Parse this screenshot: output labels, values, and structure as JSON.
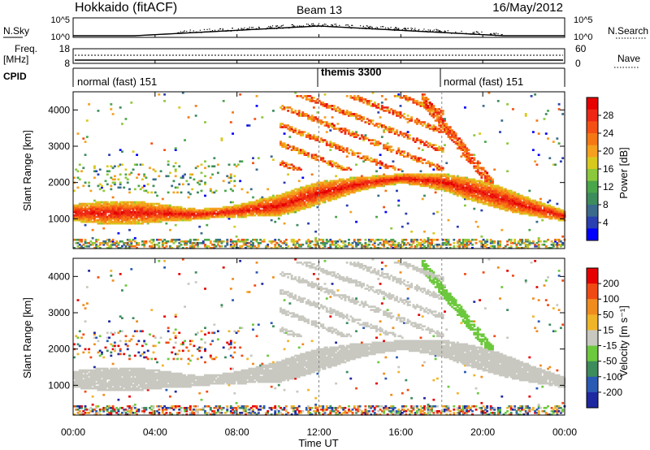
{
  "header": {
    "station": "Hokkaido (fitACF)",
    "beam": "Beam 13",
    "date": "16/May/2012"
  },
  "strip_nsky": {
    "left_label": "N.Sky",
    "right_label": "N.Search",
    "left_ticks": [
      "10^5",
      "10^0"
    ],
    "right_ticks": [
      "10^5",
      "10^0"
    ]
  },
  "strip_freq": {
    "left_label": "Freq.",
    "left_unit": "[MHz]",
    "right_label": "Nave",
    "left_ticks": [
      "18",
      "8"
    ],
    "right_ticks": [
      "60",
      "0"
    ]
  },
  "cpid": {
    "label": "CPID",
    "segments": [
      {
        "name": "normal (fast) 151",
        "start_hour": 0,
        "end_hour": 12
      },
      {
        "name": "themis 3300",
        "start_hour": 12,
        "end_hour": 18
      },
      {
        "name": "normal (fast) 151",
        "start_hour": 18,
        "end_hour": 24
      }
    ]
  },
  "x_axis": {
    "label": "Time UT",
    "ticks": [
      "00:00",
      "04:00",
      "08:00",
      "12:00",
      "16:00",
      "20:00",
      "00:00"
    ],
    "tick_hours": [
      0,
      4,
      8,
      12,
      16,
      20,
      24
    ]
  },
  "chart_data": [
    {
      "type": "heatmap",
      "parameter": "power",
      "ylabel": "Slant Range [km]",
      "yticks": [
        1000,
        2000,
        3000,
        4000
      ],
      "ylim": [
        180,
        4500
      ],
      "xlim_hours": [
        0,
        24
      ],
      "colorbar": {
        "label": "Power [dB]",
        "ticks": [
          "28",
          "24",
          "20",
          "16",
          "12",
          "8",
          "4"
        ],
        "tick_values": [
          28,
          24,
          20,
          16,
          12,
          8,
          4
        ],
        "range": [
          0,
          30
        ],
        "colors": [
          "#0000ff",
          "#2a3fb0",
          "#3a6a8c",
          "#3c8c5c",
          "#4aa64a",
          "#8cc83c",
          "#d8c81e",
          "#f5a01e",
          "#f57814",
          "#f55014",
          "#ee2814",
          "#e60000"
        ]
      },
      "main_echo_band": [
        {
          "hour": 0,
          "range_km": 1150
        },
        {
          "hour": 4,
          "range_km": 1150
        },
        {
          "hour": 6,
          "range_km": 1100
        },
        {
          "hour": 8,
          "range_km": 1200
        },
        {
          "hour": 10,
          "range_km": 1350
        },
        {
          "hour": 12,
          "range_km": 1700
        },
        {
          "hour": 14,
          "range_km": 1950
        },
        {
          "hour": 16,
          "range_km": 2100
        },
        {
          "hour": 18,
          "range_km": 2000
        },
        {
          "hour": 20,
          "range_km": 1700
        },
        {
          "hour": 22,
          "range_km": 1350
        },
        {
          "hour": 24,
          "range_km": 1050
        }
      ]
    },
    {
      "type": "heatmap",
      "parameter": "velocity",
      "ylabel": "Slant Range [km]",
      "yticks": [
        1000,
        2000,
        3000,
        4000
      ],
      "ylim": [
        180,
        4500
      ],
      "xlim_hours": [
        0,
        24
      ],
      "colorbar": {
        "label": "Velocity [m s⁻¹]",
        "ticks": [
          "200",
          "100",
          "50",
          "15",
          "-15",
          "-50",
          "-100",
          "-200"
        ],
        "tick_values": [
          200,
          100,
          50,
          15,
          -15,
          -50,
          -100,
          -200
        ],
        "colors": [
          "#1e28a0",
          "#2a5ab4",
          "#3c8c5c",
          "#6cc83c",
          "#c8c8c0",
          "#f0b428",
          "#f08c1e",
          "#f04a14",
          "#e60000"
        ]
      }
    }
  ]
}
